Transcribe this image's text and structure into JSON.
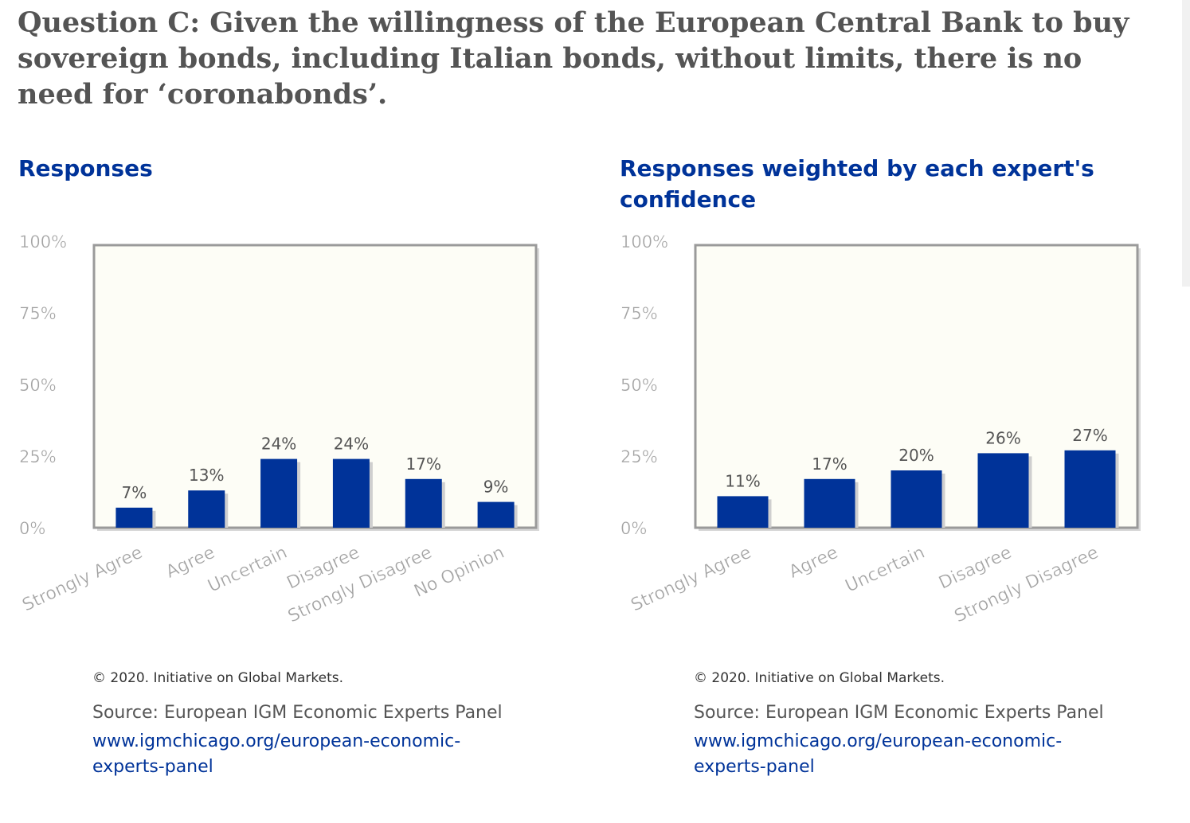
{
  "question": "Question C: Given the willingness of the European Central Bank to buy sovereign bonds, including Italian bonds, without limits, there is no need for ‘coronabonds’.",
  "colors": {
    "bar": "#003399",
    "plot_bg": "#fdfdf6",
    "title": "#003399"
  },
  "panels": [
    {
      "title": "Responses",
      "copyright": "© 2020. Initiative on Global Markets.",
      "source_text": "Source: European IGM Economic Experts Panel",
      "source_link_line1": "www.igmchicago.org/european-economic-",
      "source_link_line2": "experts-panel"
    },
    {
      "title": "Responses weighted by each expert's confidence",
      "copyright": "© 2020. Initiative on Global Markets.",
      "source_text": "Source: European IGM Economic Experts Panel",
      "source_link_line1": "www.igmchicago.org/european-economic-",
      "source_link_line2": "experts-panel"
    }
  ],
  "chart_data": [
    {
      "type": "bar",
      "title": "Responses",
      "categories": [
        "Strongly Agree",
        "Agree",
        "Uncertain",
        "Disagree",
        "Strongly Disagree",
        "No Opinion"
      ],
      "values": [
        7,
        13,
        24,
        24,
        17,
        9
      ],
      "value_labels": [
        "7%",
        "13%",
        "24%",
        "24%",
        "17%",
        "9%"
      ],
      "yticks": [
        "0%",
        "25%",
        "50%",
        "75%",
        "100%"
      ],
      "ylim": [
        0,
        100
      ],
      "grid": false,
      "legend": "none"
    },
    {
      "type": "bar",
      "title": "Responses weighted by each expert's confidence",
      "categories": [
        "Strongly Agree",
        "Agree",
        "Uncertain",
        "Disagree",
        "Strongly Disagree"
      ],
      "values": [
        11,
        17,
        20,
        26,
        27
      ],
      "value_labels": [
        "11%",
        "17%",
        "20%",
        "26%",
        "27%"
      ],
      "yticks": [
        "0%",
        "25%",
        "50%",
        "75%",
        "100%"
      ],
      "ylim": [
        0,
        100
      ],
      "grid": false,
      "legend": "none"
    }
  ]
}
